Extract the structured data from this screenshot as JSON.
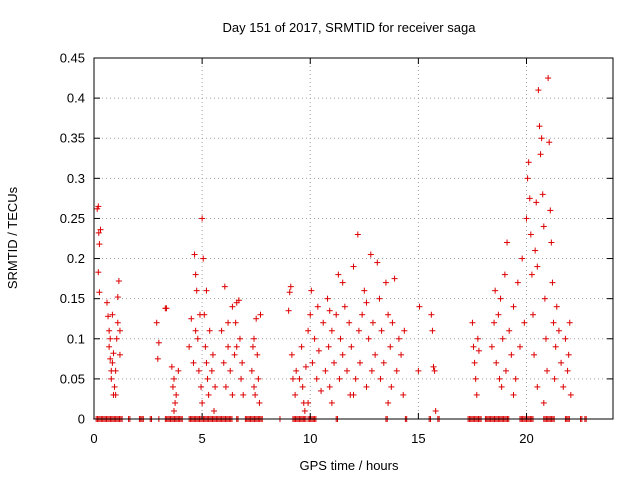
{
  "colors": {
    "series": "#dd0000",
    "axis": "#000000",
    "grid": "#a0a0a0",
    "background": "#ffffff"
  },
  "chart_data": {
    "type": "scatter",
    "title": "Day 151 of 2017, SRMTID for receiver saga",
    "xlabel": "GPS time / hours",
    "ylabel": "SRMTID / TECUs",
    "xlim": [
      0,
      24
    ],
    "ylim": [
      0,
      0.45
    ],
    "grid": true,
    "marker": "plus",
    "xticks": [
      {
        "value": 0,
        "label": "0"
      },
      {
        "value": 5,
        "label": "5"
      },
      {
        "value": 10,
        "label": "10"
      },
      {
        "value": 15,
        "label": "15"
      },
      {
        "value": 20,
        "label": "20"
      }
    ],
    "yticks": [
      {
        "value": 0,
        "label": "0"
      },
      {
        "value": 0.05,
        "label": "0.05"
      },
      {
        "value": 0.1,
        "label": "0.1"
      },
      {
        "value": 0.15,
        "label": "0.15"
      },
      {
        "value": 0.2,
        "label": "0.2"
      },
      {
        "value": 0.25,
        "label": "0.25"
      },
      {
        "value": 0.3,
        "label": "0.3"
      },
      {
        "value": 0.35,
        "label": "0.35"
      },
      {
        "value": 0.4,
        "label": "0.4"
      },
      {
        "value": 0.45,
        "label": "0.45"
      }
    ],
    "series": [
      {
        "name": "SRMTID",
        "points": [
          [
            0.15,
            0.262
          ],
          [
            0.2,
            0.265
          ],
          [
            0.22,
            0.232
          ],
          [
            0.25,
            0.218
          ],
          [
            0.3,
            0.236
          ],
          [
            0.2,
            0.183
          ],
          [
            0.25,
            0.158
          ],
          [
            0.6,
            0.145
          ],
          [
            0.65,
            0.128
          ],
          [
            0.7,
            0.11
          ],
          [
            0.7,
            0.09
          ],
          [
            0.75,
            0.075
          ],
          [
            0.8,
            0.06
          ],
          [
            0.8,
            0.05
          ],
          [
            0.85,
            0.07
          ],
          [
            0.9,
            0.082
          ],
          [
            0.95,
            0.04
          ],
          [
            1.0,
            0.06
          ],
          [
            1.05,
            0.1
          ],
          [
            1.1,
            0.12
          ],
          [
            1.1,
            0.152
          ],
          [
            1.15,
            0.172
          ],
          [
            0.9,
            0.03
          ],
          [
            1.2,
            0.08
          ],
          [
            1.2,
            0.11
          ],
          [
            0.75,
            0.1
          ],
          [
            0.85,
            0.13
          ],
          [
            1.0,
            0.03
          ],
          [
            2.9,
            0.12
          ],
          [
            3.0,
            0.095
          ],
          [
            2.95,
            0.075
          ],
          [
            3.3,
            0.138
          ],
          [
            3.35,
            0.138
          ],
          [
            3.6,
            0.065
          ],
          [
            3.65,
            0.04
          ],
          [
            3.7,
            0.05
          ],
          [
            3.75,
            0.02
          ],
          [
            3.8,
            0.03
          ],
          [
            3.9,
            0.06
          ],
          [
            3.7,
            0.01
          ],
          [
            4.4,
            0.09
          ],
          [
            4.5,
            0.125
          ],
          [
            4.6,
            0.07
          ],
          [
            4.65,
            0.205
          ],
          [
            4.7,
            0.18
          ],
          [
            4.75,
            0.16
          ],
          [
            4.8,
            0.1
          ],
          [
            4.85,
            0.06
          ],
          [
            4.9,
            0.13
          ],
          [
            4.95,
            0.04
          ],
          [
            5.0,
            0.25
          ],
          [
            5.05,
            0.2
          ],
          [
            5.1,
            0.13
          ],
          [
            5.15,
            0.09
          ],
          [
            5.2,
            0.07
          ],
          [
            5.25,
            0.05
          ],
          [
            5.3,
            0.03
          ],
          [
            5.35,
            0.11
          ],
          [
            5.0,
            0.02
          ],
          [
            5.2,
            0.16
          ],
          [
            4.7,
            0.11
          ],
          [
            5.45,
            0.06
          ],
          [
            5.5,
            0.08
          ],
          [
            5.55,
            0.01
          ],
          [
            5.6,
            0.04
          ],
          [
            5.9,
            0.11
          ],
          [
            6.0,
            0.07
          ],
          [
            6.05,
            0.165
          ],
          [
            6.1,
            0.04
          ],
          [
            6.2,
            0.09
          ],
          [
            6.3,
            0.06
          ],
          [
            6.4,
            0.03
          ],
          [
            6.5,
            0.08
          ],
          [
            6.55,
            0.12
          ],
          [
            6.6,
            0.145
          ],
          [
            6.7,
            0.148
          ],
          [
            6.75,
            0.1
          ],
          [
            6.8,
            0.05
          ],
          [
            6.85,
            0.07
          ],
          [
            6.9,
            0.03
          ],
          [
            6.4,
            0.14
          ],
          [
            6.2,
            0.12
          ],
          [
            6.6,
            0.09
          ],
          [
            7.3,
            0.06
          ],
          [
            7.35,
            0.09
          ],
          [
            7.4,
            0.04
          ],
          [
            7.45,
            0.03
          ],
          [
            7.5,
            0.125
          ],
          [
            7.55,
            0.08
          ],
          [
            7.6,
            0.05
          ],
          [
            7.7,
            0.13
          ],
          [
            7.65,
            0.02
          ],
          [
            7.4,
            0.1
          ],
          [
            9.0,
            0.135
          ],
          [
            9.05,
            0.158
          ],
          [
            9.1,
            0.165
          ],
          [
            9.15,
            0.08
          ],
          [
            9.2,
            0.05
          ],
          [
            9.3,
            0.03
          ],
          [
            9.35,
            0.06
          ],
          [
            9.5,
            0.05
          ],
          [
            9.6,
            0.09
          ],
          [
            9.65,
            0.04
          ],
          [
            9.7,
            0.02
          ],
          [
            9.75,
            0.01
          ],
          [
            9.8,
            0.065
          ],
          [
            9.9,
            0.11
          ],
          [
            10.0,
            0.13
          ],
          [
            10.05,
            0.16
          ],
          [
            10.1,
            0.07
          ],
          [
            10.2,
            0.1
          ],
          [
            10.3,
            0.05
          ],
          [
            10.35,
            0.14
          ],
          [
            10.4,
            0.085
          ],
          [
            10.5,
            0.035
          ],
          [
            10.6,
            0.12
          ],
          [
            10.7,
            0.06
          ],
          [
            10.8,
            0.15
          ],
          [
            10.85,
            0.09
          ],
          [
            10.9,
            0.04
          ],
          [
            11.0,
            0.11
          ],
          [
            11.1,
            0.07
          ],
          [
            11.2,
            0.13
          ],
          [
            11.3,
            0.18
          ],
          [
            11.35,
            0.05
          ],
          [
            11.4,
            0.1
          ],
          [
            11.5,
            0.08
          ],
          [
            11.6,
            0.14
          ],
          [
            11.7,
            0.06
          ],
          [
            11.8,
            0.12
          ],
          [
            11.85,
            0.03
          ],
          [
            11.9,
            0.09
          ],
          [
            12.0,
            0.19
          ],
          [
            12.1,
            0.05
          ],
          [
            12.2,
            0.23
          ],
          [
            12.25,
            0.11
          ],
          [
            12.3,
            0.07
          ],
          [
            12.4,
            0.13
          ],
          [
            12.5,
            0.16
          ],
          [
            12.6,
            0.04
          ],
          [
            12.7,
            0.1
          ],
          [
            12.8,
            0.205
          ],
          [
            12.85,
            0.06
          ],
          [
            12.9,
            0.12
          ],
          [
            13.0,
            0.08
          ],
          [
            13.1,
            0.195
          ],
          [
            13.2,
            0.15
          ],
          [
            13.25,
            0.05
          ],
          [
            13.3,
            0.11
          ],
          [
            13.4,
            0.07
          ],
          [
            13.5,
            0.17
          ],
          [
            13.6,
            0.13
          ],
          [
            13.7,
            0.09
          ],
          [
            13.75,
            0.04
          ],
          [
            13.8,
            0.12
          ],
          [
            13.9,
            0.175
          ],
          [
            14.0,
            0.06
          ],
          [
            14.1,
            0.1
          ],
          [
            14.2,
            0.08
          ],
          [
            14.3,
            0.03
          ],
          [
            14.35,
            0.11
          ],
          [
            11.0,
            0.02
          ],
          [
            12.0,
            0.03
          ],
          [
            10.9,
            0.135
          ],
          [
            11.5,
            0.17
          ],
          [
            12.6,
            0.145
          ],
          [
            13.6,
            0.02
          ],
          [
            9.9,
            0.02
          ],
          [
            15.0,
            0.06
          ],
          [
            15.05,
            0.14
          ],
          [
            15.6,
            0.13
          ],
          [
            15.65,
            0.11
          ],
          [
            15.7,
            0.065
          ],
          [
            15.75,
            0.06
          ],
          [
            15.8,
            0.01
          ],
          [
            17.5,
            0.12
          ],
          [
            17.55,
            0.09
          ],
          [
            17.6,
            0.07
          ],
          [
            17.65,
            0.05
          ],
          [
            17.7,
            0.03
          ],
          [
            17.75,
            0.1
          ],
          [
            17.8,
            0.085
          ],
          [
            18.4,
            0.09
          ],
          [
            18.5,
            0.12
          ],
          [
            18.55,
            0.16
          ],
          [
            18.6,
            0.07
          ],
          [
            18.7,
            0.13
          ],
          [
            18.75,
            0.05
          ],
          [
            18.8,
            0.15
          ],
          [
            18.85,
            0.04
          ],
          [
            18.9,
            0.1
          ],
          [
            19.0,
            0.18
          ],
          [
            19.05,
            0.06
          ],
          [
            19.1,
            0.22
          ],
          [
            19.2,
            0.11
          ],
          [
            19.3,
            0.08
          ],
          [
            19.4,
            0.14
          ],
          [
            19.5,
            0.05
          ],
          [
            19.6,
            0.17
          ],
          [
            19.7,
            0.09
          ],
          [
            19.8,
            0.2
          ],
          [
            19.9,
            0.12
          ],
          [
            20.0,
            0.25
          ],
          [
            20.05,
            0.3
          ],
          [
            20.1,
            0.32
          ],
          [
            20.15,
            0.275
          ],
          [
            20.2,
            0.23
          ],
          [
            20.25,
            0.18
          ],
          [
            20.3,
            0.13
          ],
          [
            20.35,
            0.08
          ],
          [
            20.4,
            0.21
          ],
          [
            20.45,
            0.27
          ],
          [
            20.5,
            0.19
          ],
          [
            20.55,
            0.41
          ],
          [
            20.6,
            0.365
          ],
          [
            20.65,
            0.33
          ],
          [
            20.7,
            0.35
          ],
          [
            20.75,
            0.28
          ],
          [
            20.8,
            0.24
          ],
          [
            20.85,
            0.15
          ],
          [
            20.9,
            0.1
          ],
          [
            20.95,
            0.06
          ],
          [
            21.0,
            0.425
          ],
          [
            21.05,
            0.345
          ],
          [
            21.1,
            0.26
          ],
          [
            21.15,
            0.22
          ],
          [
            21.2,
            0.17
          ],
          [
            21.25,
            0.12
          ],
          [
            21.3,
            0.05
          ],
          [
            21.35,
            0.09
          ],
          [
            21.4,
            0.14
          ],
          [
            21.5,
            0.11
          ],
          [
            21.6,
            0.07
          ],
          [
            21.7,
            0.04
          ],
          [
            21.8,
            0.1
          ],
          [
            21.9,
            0.06
          ],
          [
            21.95,
            0.08
          ],
          [
            22.0,
            0.12
          ],
          [
            22.05,
            0.03
          ],
          [
            20.5,
            0.04
          ],
          [
            20.8,
            0.02
          ],
          [
            19.4,
            0.03
          ]
        ]
      }
    ],
    "zero_bands": [
      [
        0.1,
        1.3
      ],
      [
        1.6,
        1.7
      ],
      [
        2.1,
        2.3
      ],
      [
        2.6,
        2.7
      ],
      [
        3.0,
        3.05
      ],
      [
        3.3,
        4.1
      ],
      [
        4.4,
        6.4
      ],
      [
        6.6,
        6.7
      ],
      [
        7.0,
        7.8
      ],
      [
        8.6,
        8.65
      ],
      [
        9.2,
        9.8
      ],
      [
        9.9,
        10.3
      ],
      [
        11.2,
        11.3
      ],
      [
        13.5,
        13.6
      ],
      [
        14.4,
        14.5
      ],
      [
        15.5,
        15.6
      ],
      [
        15.9,
        16.0
      ],
      [
        17.3,
        17.9
      ],
      [
        18.1,
        19.2
      ],
      [
        19.7,
        20.3
      ],
      [
        20.8,
        21.3
      ],
      [
        21.8,
        22.0
      ],
      [
        22.5,
        22.6
      ],
      [
        22.7,
        22.8
      ]
    ]
  }
}
